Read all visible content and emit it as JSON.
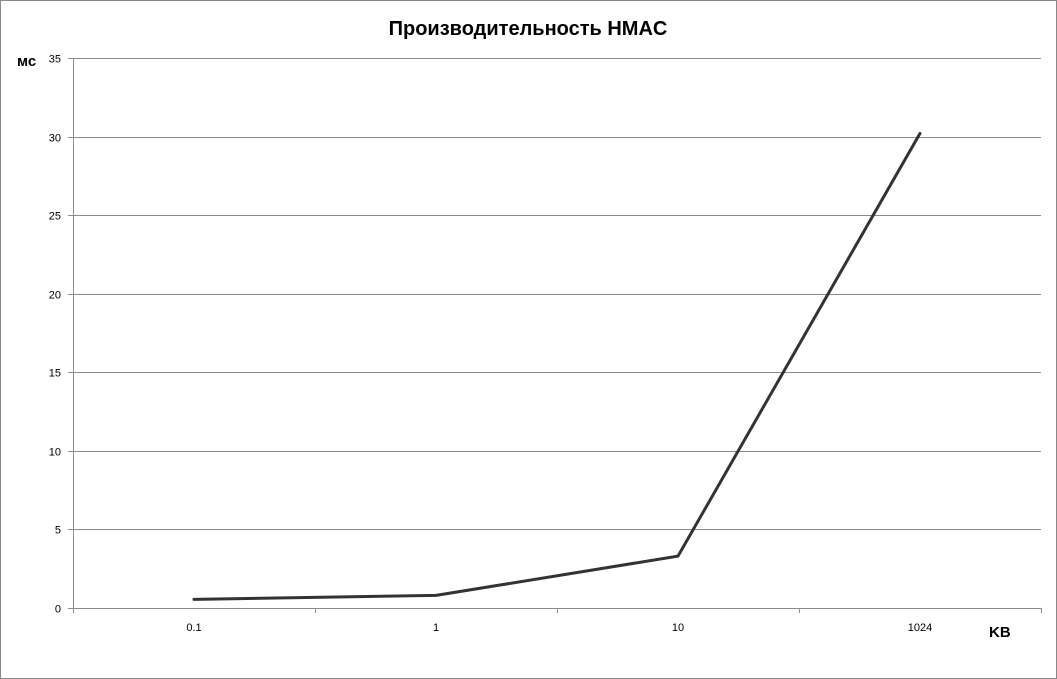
{
  "chart_data": {
    "type": "line",
    "title": "Производительность HMAC",
    "xlabel": "KB",
    "ylabel": "мс",
    "categories": [
      "0.1",
      "1",
      "10",
      "1024"
    ],
    "series": [
      {
        "values": [
          0.55,
          0.8,
          3.3,
          30.2
        ],
        "color": "#333333"
      }
    ],
    "ylim": [
      0,
      35
    ],
    "yticks": [
      0,
      5,
      10,
      15,
      20,
      25,
      30,
      35
    ],
    "grid": true,
    "legend": "none"
  }
}
